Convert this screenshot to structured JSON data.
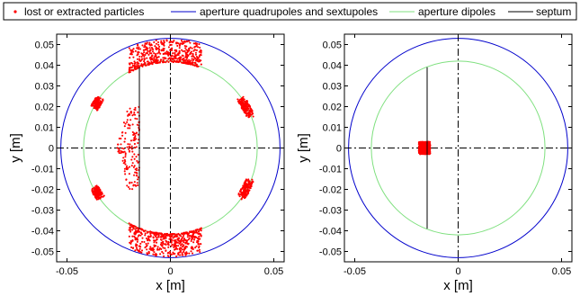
{
  "colors": {
    "particles": "#ff0000",
    "aperture_quad_sext": "#0000cc",
    "aperture_dipoles": "#7fe07f",
    "septum": "#000000",
    "axis": "#000000"
  },
  "legend": {
    "items": [
      {
        "label": "lost or extracted particles",
        "marker": "dot",
        "color_key": "particles"
      },
      {
        "label": "aperture quadrupoles and sextupoles",
        "marker": "line",
        "color_key": "aperture_quad_sext"
      },
      {
        "label": "aperture dipoles",
        "marker": "line",
        "color_key": "aperture_dipoles"
      },
      {
        "label": "septum",
        "marker": "line",
        "color_key": "septum"
      }
    ]
  },
  "chart_data": [
    {
      "type": "scatter",
      "xlabel": "x [m]",
      "ylabel": "y [m]",
      "xlim": [
        -0.055,
        0.055
      ],
      "ylim": [
        -0.055,
        0.055
      ],
      "xticks": [
        -0.05,
        0,
        0.05
      ],
      "xtick_labels": [
        "-0.05",
        "0",
        "0.05"
      ],
      "yticks": [
        -0.05,
        -0.04,
        -0.03,
        -0.02,
        -0.01,
        0,
        0.01,
        0.02,
        0.03,
        0.04,
        0.05
      ],
      "ytick_labels": [
        "-0.05",
        "-0.04",
        "-0.03",
        "-0.02",
        "-0.01",
        "0",
        "0.01",
        "0.02",
        "0.03",
        "0.04",
        "0.05"
      ],
      "aperture_quad_sext_radius": 0.053,
      "aperture_dipoles_radius": 0.042,
      "septum": {
        "x": -0.015,
        "y_range": [
          -0.039,
          0.039
        ]
      },
      "particle_clusters": [
        {
          "region": "top arc",
          "x_range": [
            -0.02,
            0.015
          ],
          "y_range": [
            0.041,
            0.053
          ]
        },
        {
          "region": "bottom arc",
          "x_range": [
            -0.02,
            0.015
          ],
          "y_range": [
            -0.053,
            -0.041
          ]
        },
        {
          "region": "upper-left shoulder",
          "x_range": [
            -0.04,
            -0.034
          ],
          "y_range": [
            0.02,
            0.025
          ]
        },
        {
          "region": "lower-left shoulder",
          "x_range": [
            -0.04,
            -0.034
          ],
          "y_range": [
            -0.025,
            -0.02
          ]
        },
        {
          "region": "upper-right shoulder",
          "x_range": [
            0.034,
            0.04
          ],
          "y_range": [
            0.015,
            0.025
          ]
        },
        {
          "region": "lower-right shoulder",
          "x_range": [
            0.034,
            0.04
          ],
          "y_range": [
            -0.025,
            -0.015
          ]
        },
        {
          "region": "left of septum",
          "x_range": [
            -0.025,
            -0.015
          ],
          "y_range": [
            -0.02,
            0.02
          ]
        }
      ]
    },
    {
      "type": "scatter",
      "xlabel": "x [m]",
      "ylabel": "y [m]",
      "xlim": [
        -0.055,
        0.055
      ],
      "ylim": [
        -0.055,
        0.055
      ],
      "xticks": [
        -0.05,
        0,
        0.05
      ],
      "xtick_labels": [
        "-0.05",
        "0",
        "0.05"
      ],
      "yticks": [
        -0.05,
        -0.04,
        -0.03,
        -0.02,
        -0.01,
        0,
        0.01,
        0.02,
        0.03,
        0.04,
        0.05
      ],
      "ytick_labels": [
        "-0.05",
        "-0.04",
        "-0.03",
        "-0.02",
        "-0.01",
        "0",
        "0.01",
        "0.02",
        "0.03",
        "0.04",
        "0.05"
      ],
      "aperture_quad_sext_radius": 0.053,
      "aperture_dipoles_radius": 0.042,
      "septum": {
        "x": -0.015,
        "y_range": [
          -0.039,
          0.039
        ]
      },
      "particle_clusters": [
        {
          "region": "extracted beam",
          "x_range": [
            -0.019,
            -0.0135
          ],
          "y_range": [
            -0.003,
            0.003
          ]
        }
      ]
    }
  ]
}
